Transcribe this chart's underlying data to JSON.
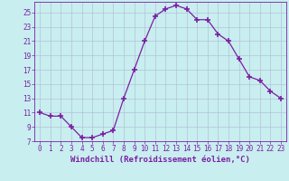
{
  "x": [
    0,
    1,
    2,
    3,
    4,
    5,
    6,
    7,
    8,
    9,
    10,
    11,
    12,
    13,
    14,
    15,
    16,
    17,
    18,
    19,
    20,
    21,
    22,
    23
  ],
  "y": [
    11,
    10.5,
    10.5,
    9,
    7.5,
    7.5,
    8,
    8.5,
    13,
    17,
    21,
    24.5,
    25.5,
    26,
    25.5,
    24,
    24,
    22,
    21,
    18.5,
    16,
    15.5,
    14,
    13
  ],
  "line_color": "#7b1fa2",
  "marker": "+",
  "marker_size": 4,
  "marker_linewidth": 1.2,
  "bg_color": "#c8eef0",
  "grid_color": "#b0b8d0",
  "xlabel": "Windchill (Refroidissement éolien,°C)",
  "xlabel_fontsize": 6.5,
  "ylim": [
    7,
    26.5
  ],
  "xlim": [
    -0.5,
    23.5
  ],
  "yticks": [
    7,
    9,
    11,
    13,
    15,
    17,
    19,
    21,
    23,
    25
  ],
  "xticks": [
    0,
    1,
    2,
    3,
    4,
    5,
    6,
    7,
    8,
    9,
    10,
    11,
    12,
    13,
    14,
    15,
    16,
    17,
    18,
    19,
    20,
    21,
    22,
    23
  ],
  "tick_label_color": "#7b1fa2",
  "tick_label_fontsize": 5.5,
  "spine_color": "#7b1fa2",
  "line_width": 0.9
}
